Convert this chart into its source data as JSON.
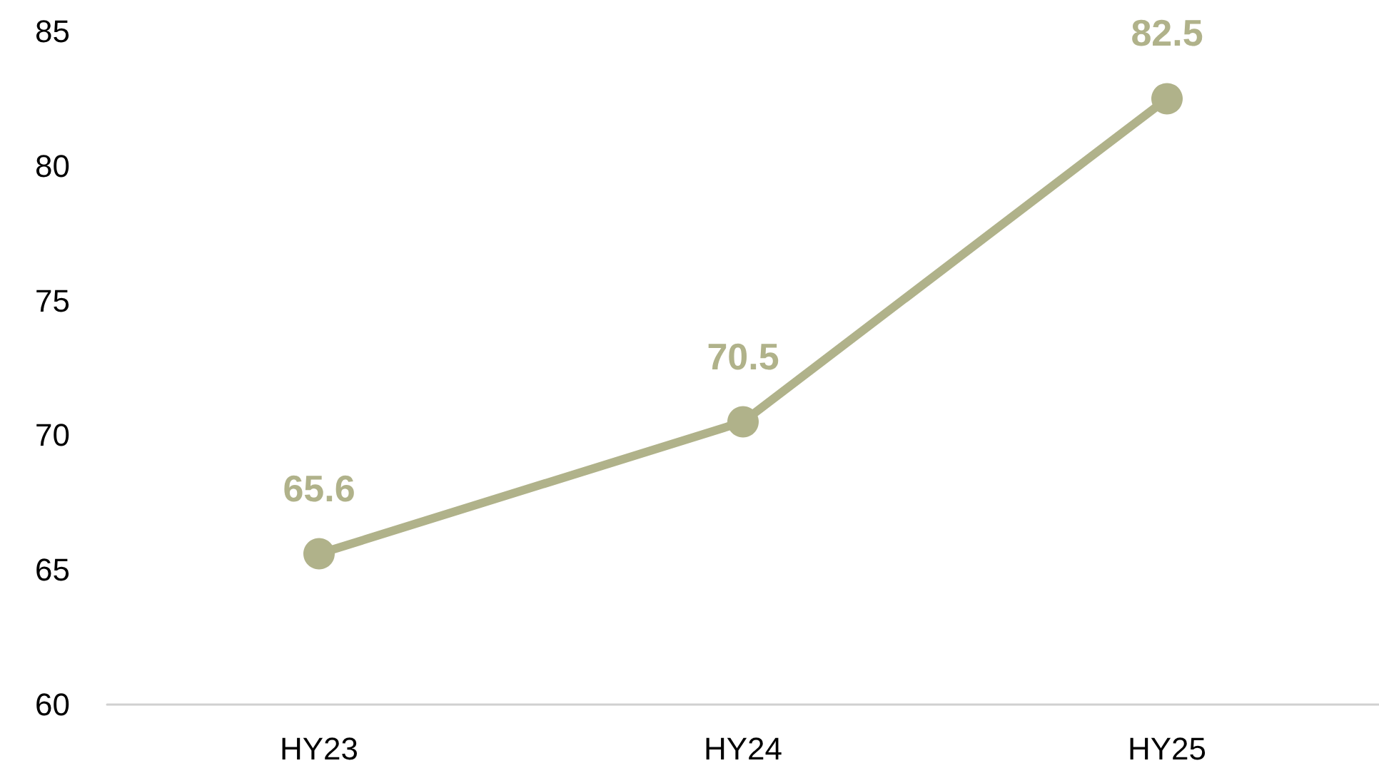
{
  "chart_data": {
    "type": "line",
    "categories": [
      "HY23",
      "HY24",
      "HY25"
    ],
    "series": [
      {
        "color": "#b0b28a",
        "values": [
          65.6,
          70.5,
          82.5
        ]
      }
    ],
    "ylim": [
      60,
      85
    ],
    "yticks": [
      60,
      65,
      70,
      75,
      80,
      85
    ],
    "grid": false,
    "marker": "circle",
    "line_style": "solid",
    "data_labels": true
  }
}
